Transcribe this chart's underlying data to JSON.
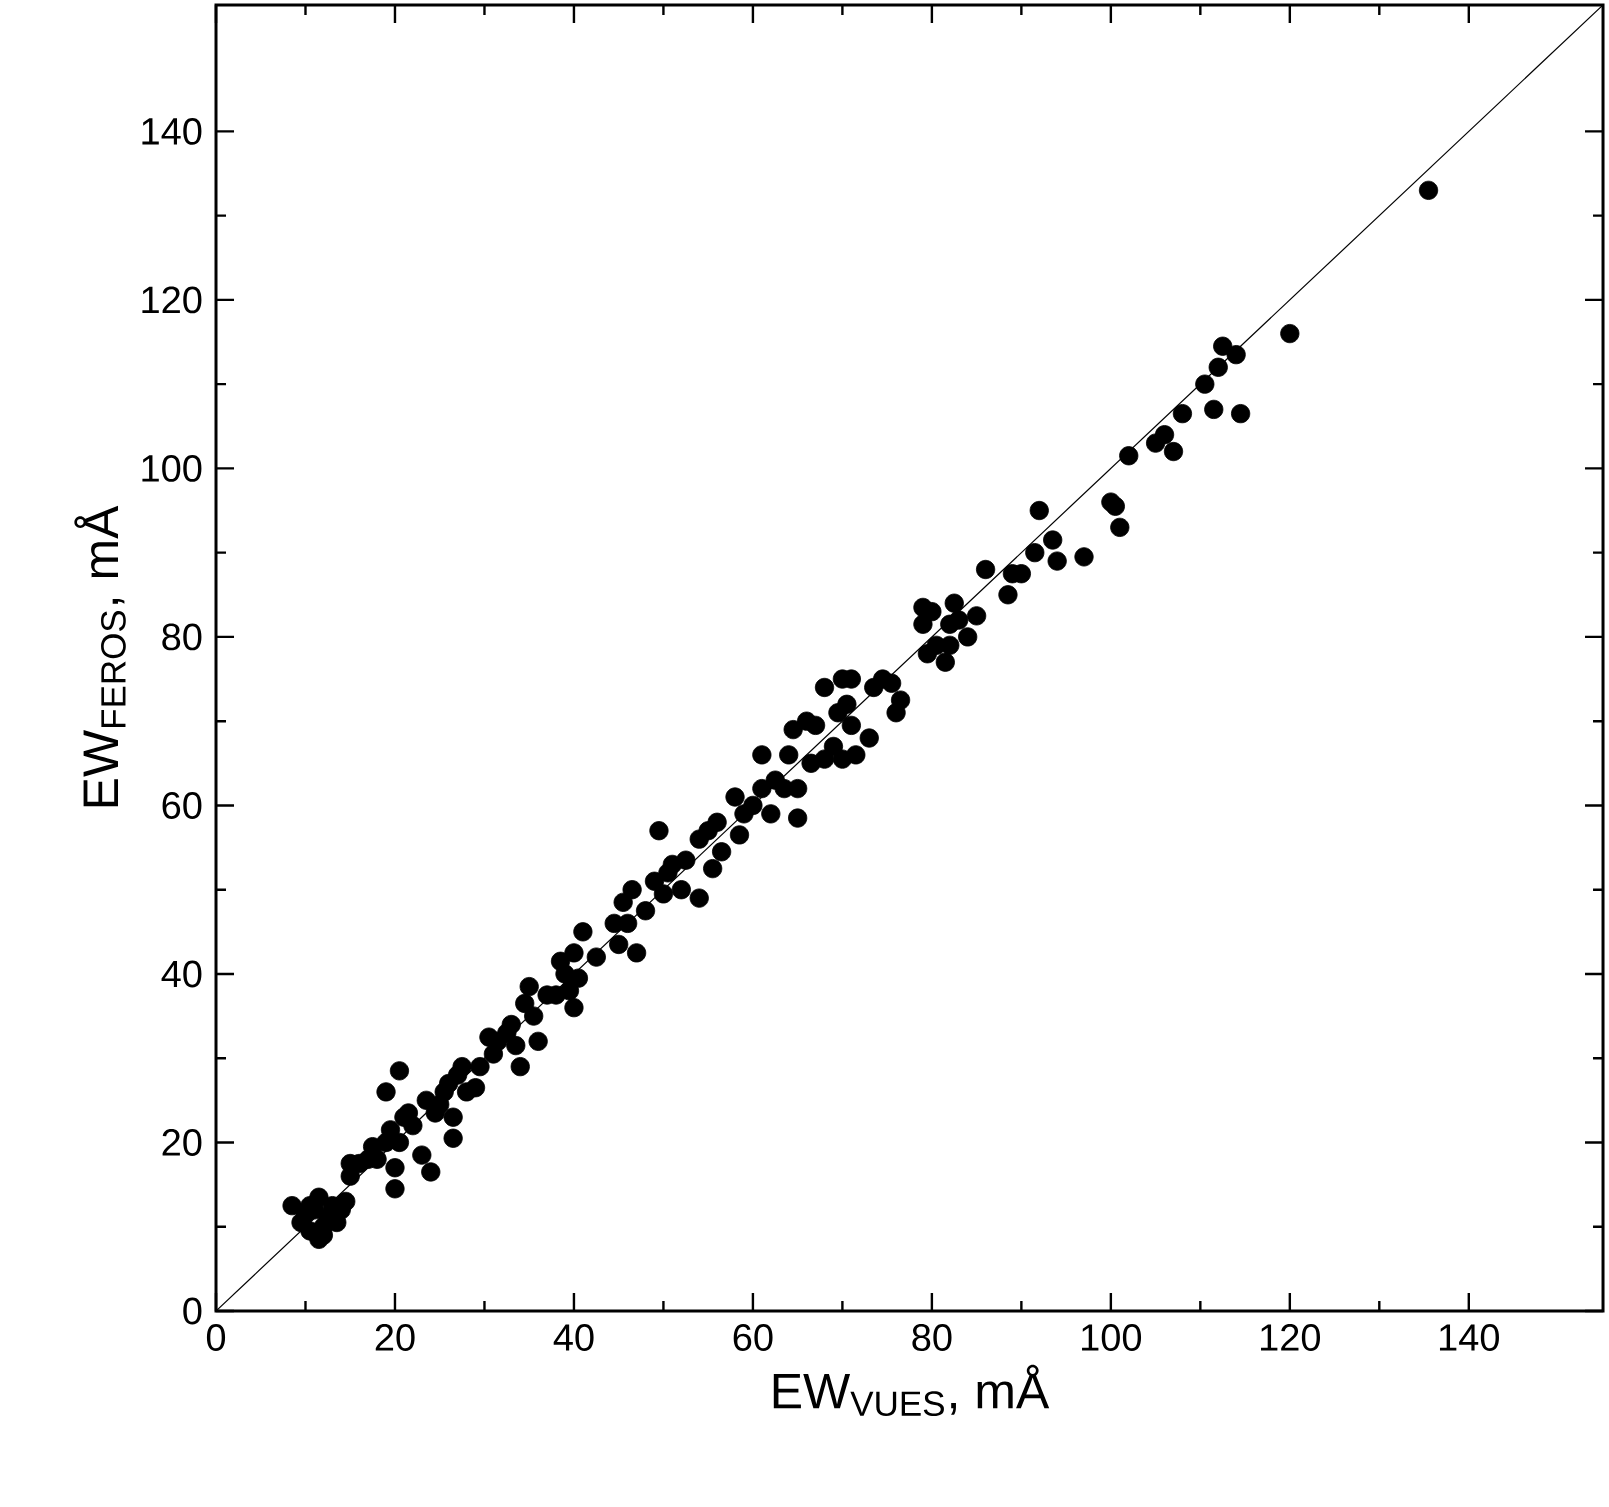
{
  "chart_data": {
    "type": "scatter",
    "xlabel": "EW$_{VUES}$, mÅ",
    "ylabel": "EW$_{FEROS}$, mÅ",
    "xlim": [
      0,
      155
    ],
    "ylim": [
      0,
      155
    ],
    "xticks": [
      0,
      20,
      40,
      60,
      80,
      100,
      120,
      140
    ],
    "yticks": [
      0,
      20,
      40,
      60,
      80,
      100,
      120,
      140
    ],
    "series": [
      {
        "marker": "circle",
        "color": "#000000",
        "x": [
          8.5,
          9.5,
          10,
          10.5,
          11,
          11.5,
          11.5,
          12,
          12.5,
          13,
          13.5,
          14,
          14.5,
          12,
          10.5,
          15,
          15,
          16,
          17,
          17.5,
          18,
          19,
          19,
          19.5,
          20,
          20,
          20.5,
          20.5,
          21,
          21.5,
          22,
          23,
          23.5,
          24,
          24.5,
          25,
          25.5,
          26,
          26.5,
          26.5,
          27,
          27.5,
          28,
          29,
          29.5,
          30.5,
          31,
          31.5,
          32.5,
          33,
          33.5,
          34,
          34.5,
          35,
          35.5,
          36,
          37,
          38,
          38.5,
          39,
          39.5,
          40,
          40,
          40.5,
          41,
          42.5,
          44.5,
          45,
          45.5,
          46,
          46.5,
          47,
          48,
          49,
          49.5,
          50,
          50.5,
          51,
          52,
          52.5,
          54,
          54,
          55,
          55.5,
          56,
          56.5,
          58,
          58.5,
          59,
          60,
          61,
          61,
          62,
          62.5,
          63.5,
          64,
          64.5,
          65,
          65,
          66,
          66.5,
          67,
          68,
          68,
          69,
          69.5,
          70,
          70,
          70.5,
          71,
          71,
          71.5,
          73,
          73.5,
          74.5,
          75.5,
          76,
          76.5,
          79,
          79,
          79.5,
          80,
          80.5,
          81.5,
          82,
          82,
          82.5,
          83,
          84,
          85,
          86,
          88.5,
          89,
          90,
          91.5,
          92,
          93.5,
          94,
          97,
          100,
          100.5,
          101,
          102,
          105,
          106,
          107,
          108,
          110.5,
          111.5,
          112,
          112.5,
          114,
          114.5,
          120,
          135.5
        ],
        "values": [
          12.5,
          10.5,
          11.5,
          9.5,
          12,
          8.5,
          13.5,
          10,
          11,
          12.5,
          10.5,
          12,
          13,
          9,
          12.5,
          17.5,
          16,
          17.5,
          18,
          19.5,
          18,
          26,
          20,
          21.5,
          17,
          14.5,
          28.5,
          20,
          23,
          23.5,
          22,
          18.5,
          25,
          16.5,
          23.5,
          24.5,
          26,
          27,
          20.5,
          23,
          28,
          29,
          26,
          26.5,
          29,
          32.5,
          30.5,
          32,
          33,
          34,
          31.5,
          29,
          36.5,
          38.5,
          35,
          32,
          37.5,
          37.5,
          41.5,
          40,
          38,
          42.5,
          36,
          39.5,
          45,
          42,
          46,
          43.5,
          48.5,
          46,
          50,
          42.5,
          47.5,
          51,
          57,
          49.5,
          52,
          53,
          50,
          53.5,
          49,
          56,
          57,
          52.5,
          58,
          54.5,
          61,
          56.5,
          59,
          60,
          62,
          66,
          59,
          63,
          62,
          66,
          69,
          58.5,
          62,
          70,
          65,
          69.5,
          74,
          65.5,
          67,
          71,
          75,
          65.5,
          72,
          75,
          69.5,
          66,
          68,
          74,
          75,
          74.5,
          71,
          72.5,
          83.5,
          81.5,
          78,
          83,
          79,
          77,
          81.5,
          79,
          84,
          82,
          80,
          82.5,
          88,
          85,
          87.5,
          87.5,
          90,
          95,
          91.5,
          89,
          89.5,
          96,
          95.5,
          93,
          101.5,
          103,
          104,
          102,
          106.5,
          110,
          107,
          112,
          114.5,
          113.5,
          106.5,
          116,
          133
        ]
      },
      {
        "type": "line",
        "marker": "none",
        "color": "#000000",
        "x": [
          0,
          155
        ],
        "values": [
          0,
          155
        ]
      }
    ]
  }
}
